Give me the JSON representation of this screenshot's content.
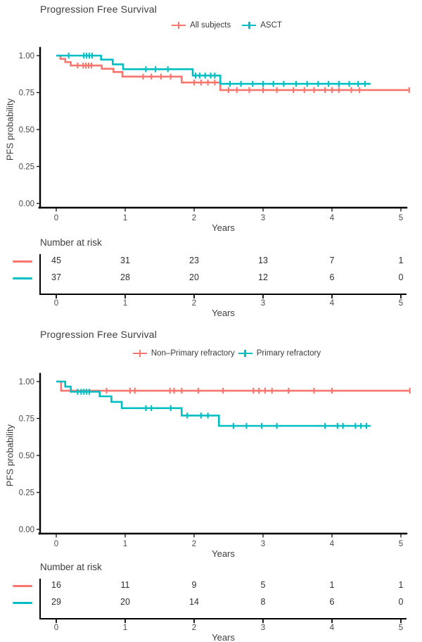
{
  "palette": {
    "red": "#F8766D",
    "teal": "#00BFC4",
    "axis": "#000000",
    "text": "#3d3d3d"
  },
  "chart_data": [
    {
      "type": "line",
      "subtype": "kaplan-meier-step",
      "title": "Progression Free Survival",
      "xlabel": "Years",
      "ylabel": "PFS probability",
      "x_ticks": [
        0,
        1,
        2,
        3,
        4,
        5
      ],
      "y_tick_labels": [
        "1.00",
        "0.75",
        "0.50",
        "0.25",
        "0.00"
      ],
      "xlim": [
        0,
        5.3
      ],
      "ylim": [
        0,
        1
      ],
      "grid": false,
      "legend_position": "top",
      "series": [
        {
          "name": "All subjects",
          "color": "#F8766D",
          "steps": [
            [
              0,
              1.0
            ],
            [
              0.06,
              0.978
            ],
            [
              0.13,
              0.956
            ],
            [
              0.21,
              0.933
            ],
            [
              0.66,
              0.911
            ],
            [
              0.83,
              0.889
            ],
            [
              0.96,
              0.858
            ],
            [
              1.82,
              0.818
            ],
            [
              2.38,
              0.767
            ]
          ],
          "end": 5.12,
          "censors": [
            0.31,
            0.39,
            0.43,
            0.47,
            0.51,
            1.26,
            1.38,
            1.52,
            1.66,
            2.0,
            2.1,
            2.2,
            2.3,
            2.5,
            2.62,
            2.8,
            3.0,
            3.2,
            3.44,
            3.6,
            3.74,
            3.9,
            4.0,
            4.1,
            4.28,
            4.4,
            5.12
          ]
        },
        {
          "name": "ASCT",
          "color": "#00BFC4",
          "steps": [
            [
              0,
              1.0
            ],
            [
              0.65,
              0.973
            ],
            [
              0.82,
              0.941
            ],
            [
              0.97,
              0.908
            ],
            [
              1.98,
              0.865
            ],
            [
              2.38,
              0.809
            ]
          ],
          "end": 4.56,
          "censors": [
            0.18,
            0.4,
            0.44,
            0.48,
            0.52,
            1.3,
            1.44,
            1.62,
            2.02,
            2.08,
            2.16,
            2.24,
            2.3,
            2.52,
            2.68,
            2.85,
            3.0,
            3.15,
            3.3,
            3.48,
            3.64,
            3.8,
            3.95,
            4.1,
            4.25,
            4.38,
            4.48
          ]
        }
      ],
      "risk_table": {
        "title": "Number at risk",
        "xlabel": "Years",
        "x_ticks": [
          0,
          1,
          2,
          3,
          4,
          5
        ],
        "rows": [
          {
            "name": "All subjects",
            "color": "#F8766D",
            "values": [
              45,
              31,
              23,
              13,
              7,
              1
            ]
          },
          {
            "name": "ASCT",
            "color": "#00BFC4",
            "values": [
              37,
              28,
              20,
              12,
              6,
              0
            ]
          }
        ]
      }
    },
    {
      "type": "line",
      "subtype": "kaplan-meier-step",
      "title": "Progression Free Survival",
      "xlabel": "Years",
      "ylabel": "PFS probability",
      "x_ticks": [
        0,
        1,
        2,
        3,
        4,
        5
      ],
      "y_tick_labels": [
        "1.00",
        "0.75",
        "0.50",
        "0.25",
        "0.00"
      ],
      "xlim": [
        0,
        5.3
      ],
      "ylim": [
        0,
        1
      ],
      "grid": false,
      "legend_position": "top",
      "series": [
        {
          "name": "Non–Primary refractory",
          "color": "#F8766D",
          "steps": [
            [
              0,
              1.0
            ],
            [
              0.07,
              0.938
            ]
          ],
          "end": 5.13,
          "censors": [
            0.73,
            1.07,
            1.14,
            1.65,
            1.71,
            1.82,
            2.06,
            2.42,
            2.86,
            2.94,
            3.03,
            3.13,
            3.37,
            3.74,
            4.0,
            5.13
          ]
        },
        {
          "name": "Primary refractory",
          "color": "#00BFC4",
          "steps": [
            [
              0,
              1.0
            ],
            [
              0.13,
              0.966
            ],
            [
              0.21,
              0.931
            ],
            [
              0.63,
              0.9
            ],
            [
              0.8,
              0.862
            ],
            [
              0.95,
              0.82
            ],
            [
              1.82,
              0.77
            ],
            [
              2.36,
              0.7
            ]
          ],
          "end": 4.56,
          "censors": [
            0.31,
            0.36,
            0.4,
            0.44,
            0.48,
            1.3,
            1.38,
            1.66,
            1.9,
            2.1,
            2.2,
            2.57,
            2.76,
            2.98,
            3.2,
            3.9,
            4.08,
            4.16,
            4.34,
            4.42,
            4.5
          ]
        }
      ],
      "risk_table": {
        "title": "Number at risk",
        "xlabel": "Years",
        "x_ticks": [
          0,
          1,
          2,
          3,
          4,
          5
        ],
        "rows": [
          {
            "name": "Non–Primary refractory",
            "color": "#F8766D",
            "values": [
              16,
              11,
              9,
              5,
              1,
              1
            ]
          },
          {
            "name": "Primary refractory",
            "color": "#00BFC4",
            "values": [
              29,
              20,
              14,
              8,
              6,
              0
            ]
          }
        ]
      }
    }
  ]
}
